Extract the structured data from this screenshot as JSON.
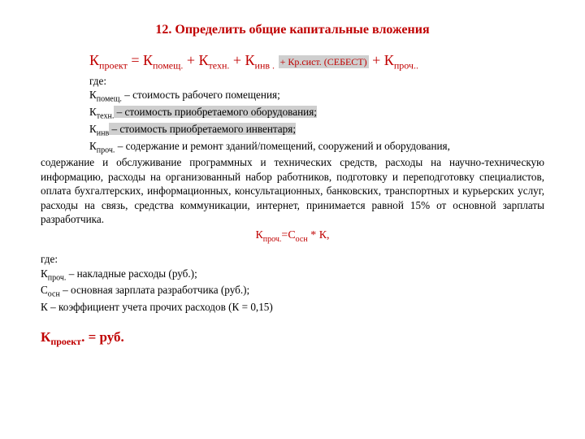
{
  "colors": {
    "accent": "#c00000",
    "highlight_bg": "#cfcfcf",
    "text": "#000000",
    "background": "#ffffff"
  },
  "typography": {
    "family": "Times New Roman",
    "title_size_pt": 12,
    "body_size_pt": 10,
    "formula_main_size_pt": 14
  },
  "title": "12. Определить общие капитальные вложения",
  "formula_main": {
    "lhs_base": "К",
    "lhs_sub": "проект",
    "terms": [
      {
        "base": "К",
        "sub": "помещ."
      },
      {
        "base": "К",
        "sub": "техн."
      },
      {
        "base": "К",
        "sub": "инв ."
      }
    ],
    "highlight_term": "+ Кр.сист. (СЕБЕСТ)",
    "last_term": {
      "base": "К",
      "sub": "проч.."
    }
  },
  "where_label": "где:",
  "defs": [
    {
      "sym": "К",
      "sub": "помещ.",
      "text": " – стоимость рабочего помещения;",
      "hl": false
    },
    {
      "sym": "К",
      "sub": "техн.",
      "text": " – стоимость приобретаемого оборудования;",
      "hl": true
    },
    {
      "sym": "К",
      "sub": "инв",
      "text": " – стоимость приобретаемого инвентаря;",
      "hl": true
    }
  ],
  "def_long": {
    "sym": "К",
    "sub": "проч.",
    "lead": " – содержание и ремонт зданий/помещений, сооружений и оборудования, ",
    "rest": "содержание и обслуживание программных и технических средств, расходы на научно-техническую информацию, расходы на организованный набор работников, подготовку и переподготовку специалистов, оплата бухгалтерских, информационных, консультационных, банковских, транспортных и курьерских услуг, расходы на связь, средства коммуникации, интернет, принимается равной 15% от основной зарплаты разработчика."
  },
  "formula2": {
    "lhs_base": "К",
    "lhs_sub": "проч.",
    "rhs1_base": "С",
    "rhs1_sub": "осн",
    "op": "*",
    "rhs2": "К,"
  },
  "defs2": [
    {
      "sym": "К",
      "sub": "проч.",
      "text": " – накладные расходы (руб.);"
    },
    {
      "sym": "С",
      "sub": "осн",
      "text": " – основная зарплата разработчика (руб.);"
    },
    {
      "sym": "К",
      "sub": "",
      "text": " – коэффициент учета прочих расходов (К = 0,15)"
    }
  ],
  "result": {
    "base": "К",
    "sub": "проект",
    "tail": ".   = руб."
  }
}
